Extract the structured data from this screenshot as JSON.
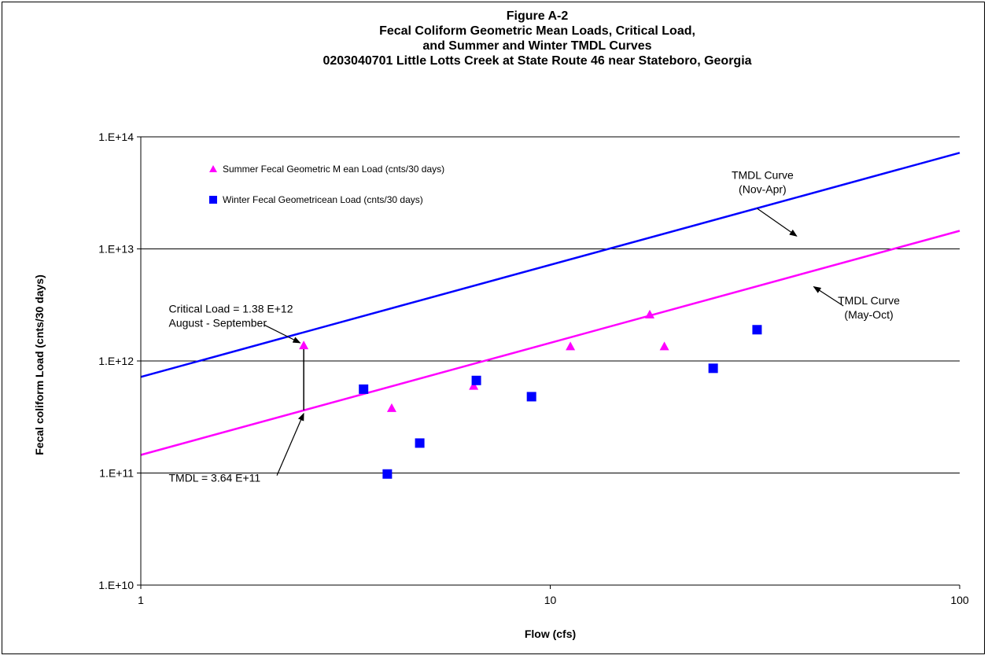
{
  "chart_data": {
    "type": "scatter",
    "title_lines": [
      "Figure A-2",
      "Fecal Coliform Geometric Mean Loads,  Critical Load,",
      "and Summer and Winter TMDL Curves",
      "0203040701  Little Lotts Creek at State Route 46 near Stateboro, Georgia"
    ],
    "xlabel": "Flow   (cfs)",
    "ylabel": "Fecal coliform Load  (cnts/30 days)",
    "x_scale": "log",
    "y_scale": "log",
    "xlim": [
      1,
      100
    ],
    "ylim": [
      10000000000.0,
      100000000000000.0
    ],
    "x_ticks": [
      {
        "value": 1,
        "label": "1"
      },
      {
        "value": 10,
        "label": "10"
      },
      {
        "value": 100,
        "label": "100"
      }
    ],
    "y_ticks": [
      {
        "value": 10000000000.0,
        "label": "1.E+10"
      },
      {
        "value": 100000000000.0,
        "label": "1.E+11"
      },
      {
        "value": 1000000000000.0,
        "label": "1.E+12"
      },
      {
        "value": 10000000000000.0,
        "label": "1.E+13"
      },
      {
        "value": 100000000000000.0,
        "label": "1.E+14"
      }
    ],
    "grid": "horizontal",
    "legend_position": "top-left",
    "series": [
      {
        "name": "Summer Fecal Geometric M ean Load (cnts/30 days)",
        "kind": "scatter",
        "marker": "triangle",
        "color": "#ff00ff",
        "points": [
          {
            "x": 2.5,
            "y": 1380000000000.0
          },
          {
            "x": 4.1,
            "y": 380000000000.0
          },
          {
            "x": 6.5,
            "y": 600000000000.0
          },
          {
            "x": 11.2,
            "y": 1350000000000.0
          },
          {
            "x": 17.5,
            "y": 2600000000000.0
          },
          {
            "x": 19.0,
            "y": 1350000000000.0
          }
        ]
      },
      {
        "name": "Winter Fecal Geometricean Load (cnts/30 days)",
        "kind": "scatter",
        "marker": "square",
        "color": "#0000ff",
        "points": [
          {
            "x": 3.5,
            "y": 560000000000.0
          },
          {
            "x": 4.0,
            "y": 98000000000.0
          },
          {
            "x": 4.8,
            "y": 185000000000.0
          },
          {
            "x": 6.6,
            "y": 670000000000.0
          },
          {
            "x": 9.0,
            "y": 480000000000.0
          },
          {
            "x": 25.0,
            "y": 860000000000.0
          },
          {
            "x": 32.0,
            "y": 1900000000000.0
          }
        ]
      },
      {
        "name": "TMDL Curve (Nov-Apr)",
        "kind": "line",
        "color": "#0000ff",
        "points": [
          {
            "x": 1,
            "y": 720000000000.0
          },
          {
            "x": 100,
            "y": 72000000000000.0
          }
        ]
      },
      {
        "name": "TMDL Curve (May-Oct)",
        "kind": "line",
        "color": "#ff00ff",
        "points": [
          {
            "x": 1,
            "y": 145000000000.0
          },
          {
            "x": 100,
            "y": 14500000000000.0
          }
        ]
      }
    ],
    "annotations": [
      {
        "id": "critical-load",
        "lines": [
          "Critical Load  = 1.38 E+12",
          "August - September"
        ],
        "text_at": {
          "x": 1.17,
          "y": 2700000000000.0
        },
        "arrow_from": {
          "x": 2.0,
          "y": 2100000000000.0
        },
        "arrow_to": {
          "x": 2.45,
          "y": 1450000000000.0
        }
      },
      {
        "id": "tmdl-value",
        "lines": [
          "TMDL  = 3.64  E+11"
        ],
        "text_at": {
          "x": 1.17,
          "y": 84000000000.0
        },
        "arrow_from": {
          "x": 2.15,
          "y": 95000000000.0
        },
        "arrow_to": {
          "x": 2.5,
          "y": 340000000000.0
        }
      },
      {
        "id": "tmdl-curve-winter",
        "lines": [
          "TMDL  Curve",
          "(Nov-Apr)"
        ],
        "text_at": {
          "x": 33,
          "y": 42000000000000.0
        },
        "arrow_from": {
          "x": 32,
          "y": 23000000000000.0
        },
        "arrow_to": {
          "x": 40,
          "y": 13000000000000.0
        }
      },
      {
        "id": "tmdl-curve-summer",
        "lines": [
          "TMDL Curve",
          "(May-Oct)"
        ],
        "text_at": {
          "x": 60,
          "y": 3200000000000.0
        },
        "arrow_from": {
          "x": 52,
          "y": 3100000000000.0
        },
        "arrow_to": {
          "x": 44,
          "y": 4600000000000.0
        }
      }
    ],
    "critical_drop": {
      "x": 2.5,
      "y_from": 1300000000000.0,
      "y_to": 364000000000.0
    }
  }
}
